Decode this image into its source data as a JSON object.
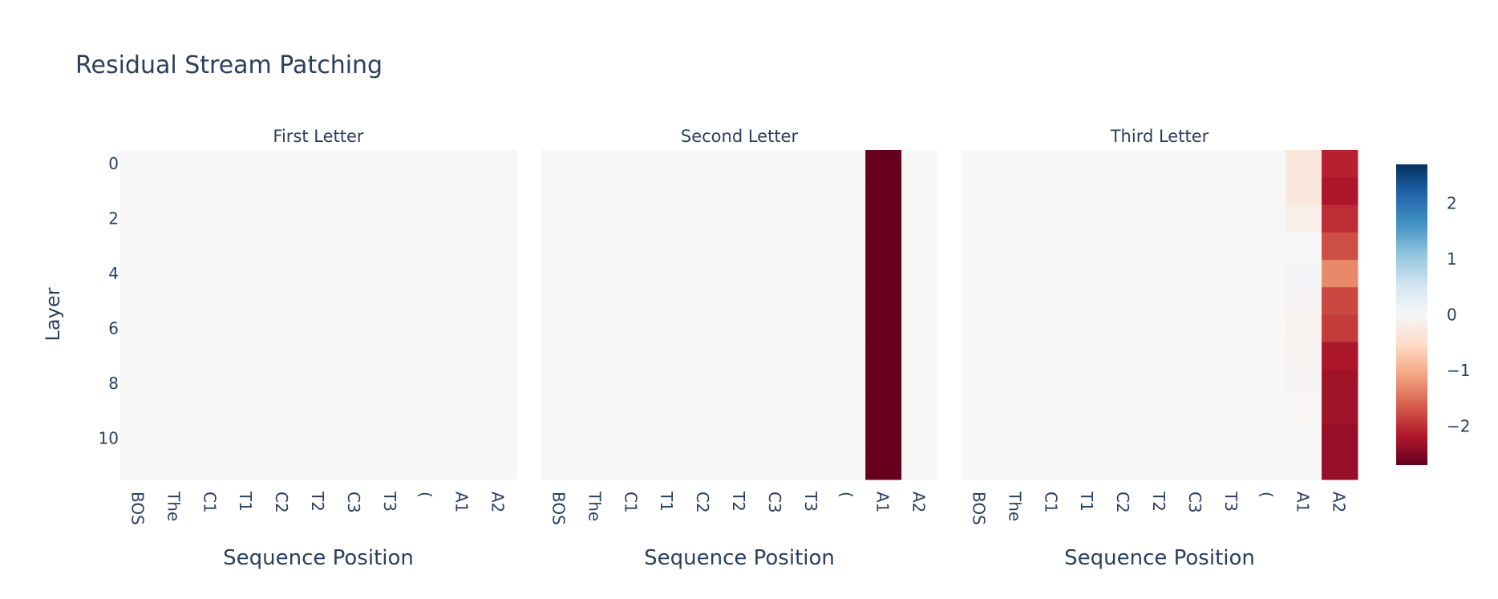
{
  "chart_data": {
    "type": "heatmap",
    "title": "Residual Stream Patching",
    "ylabel": "Layer",
    "xlabel": "Sequence Position",
    "x_categories": [
      "BOS",
      "The",
      "C1",
      "T1",
      "C2",
      "T2",
      "C3",
      "T3",
      "(",
      "A1",
      "A2"
    ],
    "y_rows": [
      0,
      1,
      2,
      3,
      4,
      5,
      6,
      7,
      8,
      9,
      10,
      11
    ],
    "y_tick_labels": [
      "0",
      "2",
      "4",
      "6",
      "8",
      "10"
    ],
    "color_scale": "RdBu",
    "zmin": -2.7,
    "zmax": 2.7,
    "colorbar_ticks": [
      "2",
      "1",
      "0",
      "−1",
      "−2"
    ],
    "colorbar_tick_values": [
      2,
      1,
      0,
      -1,
      -2
    ],
    "panels": [
      {
        "title": "First Letter",
        "values": [
          [
            0,
            0,
            0,
            0,
            0,
            0,
            0,
            0,
            0,
            0,
            0
          ],
          [
            0,
            0,
            0,
            0,
            0,
            0,
            0,
            0,
            0,
            0,
            0
          ],
          [
            0,
            0,
            0,
            0,
            0,
            0,
            0,
            0,
            0,
            0,
            0
          ],
          [
            0,
            0,
            0,
            0,
            0,
            0,
            0,
            0,
            0,
            0,
            0
          ],
          [
            0,
            0,
            0,
            0,
            0,
            0,
            0,
            0,
            0,
            0,
            0
          ],
          [
            0,
            0,
            0,
            0,
            0,
            0,
            0,
            0,
            0,
            0,
            0
          ],
          [
            0,
            0,
            0,
            0,
            0,
            0,
            0,
            0,
            0,
            0,
            0
          ],
          [
            0,
            0,
            0,
            0,
            0,
            0,
            0,
            0,
            0,
            0,
            0
          ],
          [
            0,
            0,
            0,
            0,
            0,
            0,
            0,
            0,
            0,
            0,
            0
          ],
          [
            0,
            0,
            0,
            0,
            0,
            0,
            0,
            0,
            0,
            0,
            0
          ],
          [
            0,
            0,
            0,
            0,
            0,
            0,
            0,
            0,
            0,
            0,
            0
          ],
          [
            0,
            0,
            0,
            0,
            0,
            0,
            0,
            0,
            0,
            0,
            0
          ]
        ]
      },
      {
        "title": "Second Letter",
        "values": [
          [
            0,
            0,
            0,
            0,
            0,
            0,
            0,
            0,
            0,
            -2.7,
            0
          ],
          [
            0,
            0,
            0,
            0,
            0,
            0,
            0,
            0,
            0,
            -2.7,
            0
          ],
          [
            0,
            0,
            0,
            0,
            0,
            0,
            0,
            0,
            0,
            -2.7,
            0
          ],
          [
            0,
            0,
            0,
            0,
            0,
            0,
            0,
            0,
            0,
            -2.7,
            0
          ],
          [
            0,
            0,
            0,
            0,
            0,
            0,
            0,
            0,
            0,
            -2.7,
            0
          ],
          [
            0,
            0,
            0,
            0,
            0,
            0,
            0,
            0,
            0,
            -2.7,
            0
          ],
          [
            0,
            0,
            0,
            0,
            0,
            0,
            0,
            0,
            0,
            -2.7,
            0
          ],
          [
            0,
            0,
            0,
            0,
            0,
            0,
            0,
            0,
            0,
            -2.7,
            0
          ],
          [
            0,
            0,
            0,
            0,
            0,
            0,
            0,
            0,
            0,
            -2.7,
            0
          ],
          [
            0,
            0,
            0,
            0,
            0,
            0,
            0,
            0,
            0,
            -2.7,
            0
          ],
          [
            0,
            0,
            0,
            0,
            0,
            0,
            0,
            0,
            0,
            -2.7,
            0
          ],
          [
            0,
            0,
            0,
            0,
            0,
            0,
            0,
            0,
            0,
            -2.7,
            0
          ]
        ]
      },
      {
        "title": "Third Letter",
        "values": [
          [
            0,
            0,
            0,
            0,
            0,
            0,
            0,
            0,
            0,
            -0.3,
            -2.1
          ],
          [
            0,
            0,
            0,
            0,
            0,
            0,
            0,
            0,
            0,
            -0.3,
            -2.2
          ],
          [
            0,
            0,
            0,
            0,
            0,
            0,
            0,
            0,
            0,
            -0.15,
            -2.0
          ],
          [
            0,
            0,
            0,
            0,
            0,
            0,
            0,
            0,
            0,
            0,
            -1.75
          ],
          [
            0,
            0,
            0,
            0,
            0,
            0,
            0,
            0,
            0,
            0.05,
            -1.3
          ],
          [
            0,
            0,
            0,
            0,
            0,
            0,
            0,
            0,
            0,
            -0.05,
            -1.8
          ],
          [
            0,
            0,
            0,
            0,
            0,
            0,
            0,
            0,
            0,
            -0.1,
            -1.9
          ],
          [
            0,
            0,
            0,
            0,
            0,
            0,
            0,
            0,
            0,
            -0.08,
            -2.2
          ],
          [
            0,
            0,
            0,
            0,
            0,
            0,
            0,
            0,
            0,
            -0.03,
            -2.3
          ],
          [
            0,
            0,
            0,
            0,
            0,
            0,
            0,
            0,
            0,
            -0.02,
            -2.3
          ],
          [
            0,
            0,
            0,
            0,
            0,
            0,
            0,
            0,
            0,
            0,
            -2.35
          ],
          [
            0,
            0,
            0,
            0,
            0,
            0,
            0,
            0,
            0,
            0,
            -2.35
          ]
        ]
      }
    ]
  }
}
